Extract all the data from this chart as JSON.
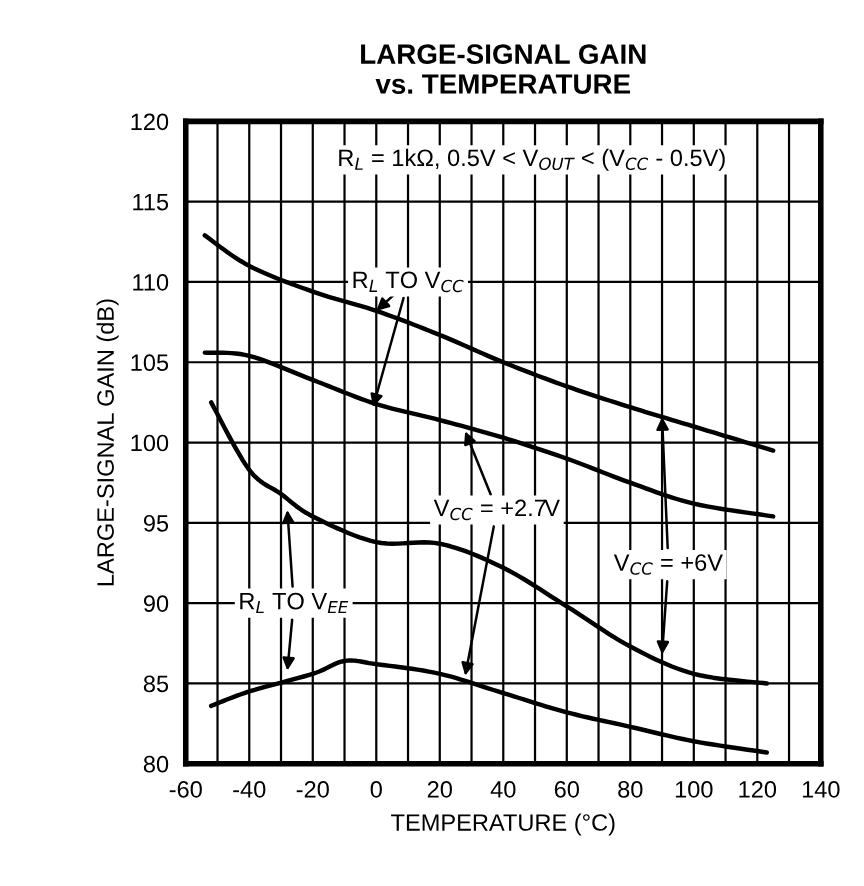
{
  "chart_data": {
    "type": "line",
    "title": "LARGE-SIGNAL GAIN\nvs. TEMPERATURE",
    "xlabel": "TEMPERATURE (°C)",
    "ylabel": "LARGE-SIGNAL GAIN (dB)",
    "series": [
      {
        "color": "#000000",
        "x": [
          -54,
          -40,
          -20,
          0,
          20,
          40,
          60,
          80,
          100,
          125
        ],
        "values": [
          112.9,
          111.0,
          109.4,
          108.2,
          106.7,
          105.0,
          103.5,
          102.2,
          101.0,
          99.5
        ]
      },
      {
        "color": "#000000",
        "x": [
          -54,
          -40,
          -20,
          0,
          20,
          40,
          60,
          80,
          100,
          125
        ],
        "values": [
          105.6,
          105.4,
          103.9,
          102.4,
          101.4,
          100.3,
          99.0,
          97.5,
          96.2,
          95.4
        ]
      },
      {
        "color": "#000000",
        "x": [
          -52,
          -40,
          -30,
          -20,
          0,
          20,
          40,
          60,
          80,
          100,
          123
        ],
        "values": [
          102.5,
          98.3,
          96.8,
          95.4,
          93.8,
          93.7,
          92.2,
          89.8,
          87.3,
          85.6,
          85.0
        ]
      },
      {
        "color": "#000000",
        "x": [
          -52,
          -40,
          -20,
          -10,
          0,
          20,
          40,
          60,
          80,
          100,
          123
        ],
        "values": [
          83.6,
          84.5,
          85.6,
          86.4,
          86.2,
          85.6,
          84.4,
          83.2,
          82.3,
          81.4,
          80.7
        ]
      }
    ],
    "xlim": [
      -60,
      140
    ],
    "ylim": [
      80,
      120
    ],
    "xticks": [
      -60,
      {
        "value": -50,
        "label": null
      },
      -40,
      {
        "value": -30,
        "label": null
      },
      -20,
      {
        "value": -10,
        "label": null
      },
      0,
      {
        "value": 10,
        "label": null
      },
      20,
      {
        "value": 30,
        "label": null
      },
      40,
      {
        "value": 50,
        "label": null
      },
      60,
      {
        "value": 70,
        "label": null
      },
      80,
      {
        "value": 90,
        "label": null
      },
      100,
      {
        "value": 110,
        "label": null
      },
      120,
      {
        "value": 130,
        "label": null
      },
      140
    ],
    "yticks": [
      80,
      85,
      90,
      95,
      100,
      105,
      110,
      115,
      120
    ],
    "grid": true,
    "legend": false,
    "marker": "none",
    "line_style": "solid",
    "annotations": [
      "R$_{L}$ = 1kΩ, 0.5V < V$_{OUT}$ < (V$_{CC}$ - 0.5V)",
      {
        "text": "R$_{L}$ TO V$_{CC}$",
        "x": 0,
        "y": 108.2
      },
      {
        "text": "V$_{CC}$ = +2.7V",
        "x": 28,
        "y": 100.7
      },
      {
        "text": "V$_{CC}$ = +6V",
        "x": 90,
        "y": 101.6
      },
      {
        "text": "R$_{L}$ TO V$_{EE}$",
        "x": -28,
        "y": 95.8
      }
    ]
  }
}
